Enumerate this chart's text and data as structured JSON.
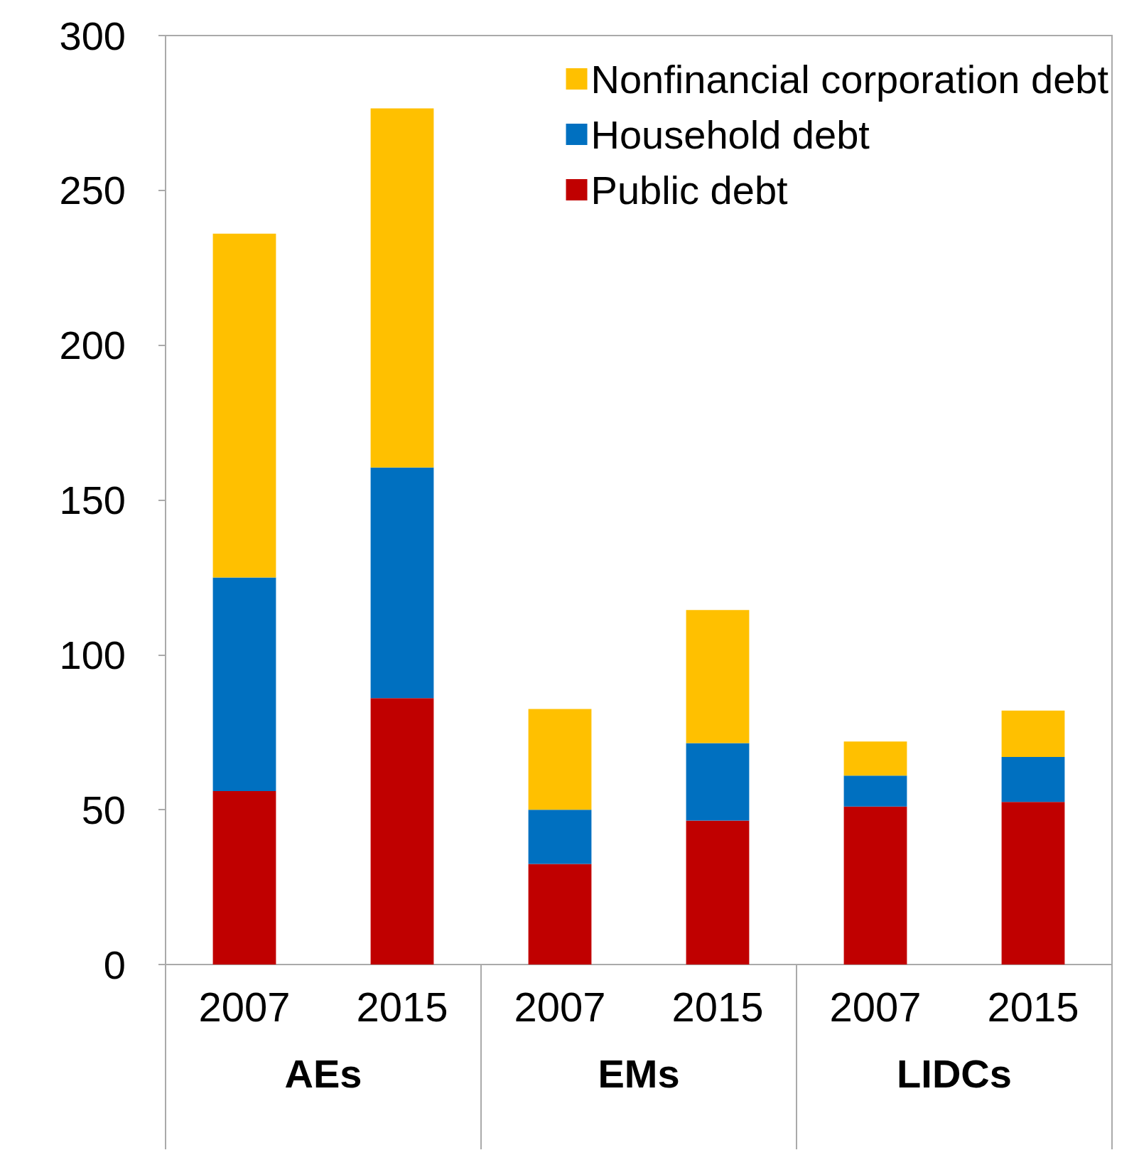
{
  "chart_data": {
    "type": "bar",
    "stacked": true,
    "categories": [
      "2007",
      "2015",
      "2007",
      "2015",
      "2007",
      "2015"
    ],
    "series": [
      {
        "name": "Public debt",
        "color": "#c00000",
        "values": [
          56,
          86,
          32.5,
          46.5,
          51,
          52.5
        ]
      },
      {
        "name": "Household debt",
        "color": "#0070c0",
        "values": [
          69,
          74.5,
          17.5,
          25,
          10,
          14.5
        ]
      },
      {
        "name": "Nonfinancial corporation debt",
        "color": "#ffc000",
        "values": [
          111,
          116,
          32.5,
          43,
          11,
          15
        ]
      }
    ],
    "annotations": [
      "AEs",
      "EMs",
      "LIDCs"
    ],
    "ylim": [
      0,
      300
    ],
    "yticks": [
      0,
      50,
      100,
      150,
      200,
      250,
      300
    ],
    "grid": false,
    "legend": "top right"
  }
}
